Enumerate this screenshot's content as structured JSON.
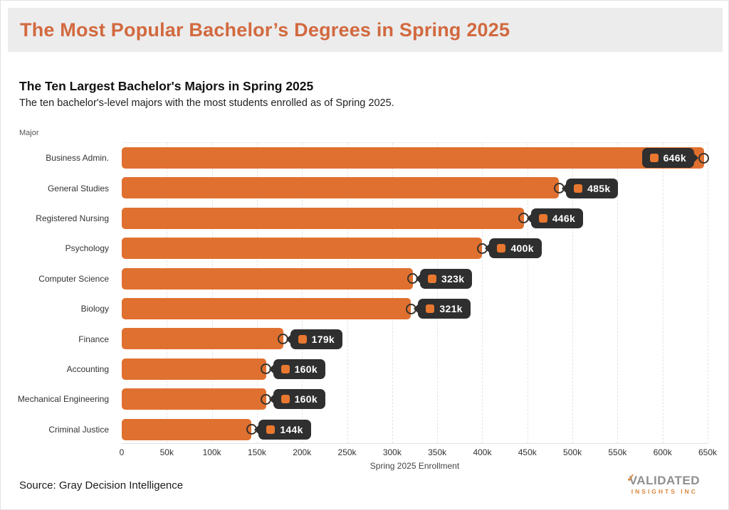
{
  "page": {
    "header_title": "The Most Popular Bachelor’s Degrees in Spring 2025",
    "source_note": "Source: Gray Decision Intelligence",
    "logo": {
      "line1": "VALIDATED",
      "line2": "INSIGHTS INC"
    }
  },
  "chart_data": {
    "type": "bar",
    "orientation": "horizontal",
    "title": "The Ten Largest Bachelor's Majors in Spring 2025",
    "subtitle": "The ten bachelor's-level majors with the most students enrolled as of Spring 2025.",
    "ylabel": "Major",
    "xlabel": "Spring 2025 Enrollment",
    "categories": [
      "Business Admin.",
      "General Studies",
      "Registered Nursing",
      "Psychology",
      "Computer Science",
      "Biology",
      "Finance",
      "Accounting",
      "Mechanical Engineering",
      "Criminal Justice"
    ],
    "values_k": [
      646,
      485,
      446,
      400,
      323,
      321,
      179,
      160,
      160,
      144
    ],
    "value_labels": [
      "646k",
      "485k",
      "446k",
      "400k",
      "323k",
      "321k",
      "179k",
      "160k",
      "160k",
      "144k"
    ],
    "xlim_k": [
      0,
      650
    ],
    "xticks_k": [
      0,
      50,
      100,
      150,
      200,
      250,
      300,
      350,
      400,
      450,
      500,
      550,
      600,
      650
    ],
    "xtick_labels": [
      "0",
      "50k",
      "100k",
      "150k",
      "200k",
      "250k",
      "300k",
      "350k",
      "400k",
      "450k",
      "500k",
      "550k",
      "600k",
      "650k"
    ],
    "grid": "vertical-dashed",
    "legend": "none",
    "colors": {
      "bar": "#E0702F",
      "badge_bg": "#2F2F2F",
      "badge_chip": "#E8772F",
      "badge_text": "#FFFFFF",
      "title_accent": "#D2693F",
      "header_band": "#ECECEC"
    }
  }
}
